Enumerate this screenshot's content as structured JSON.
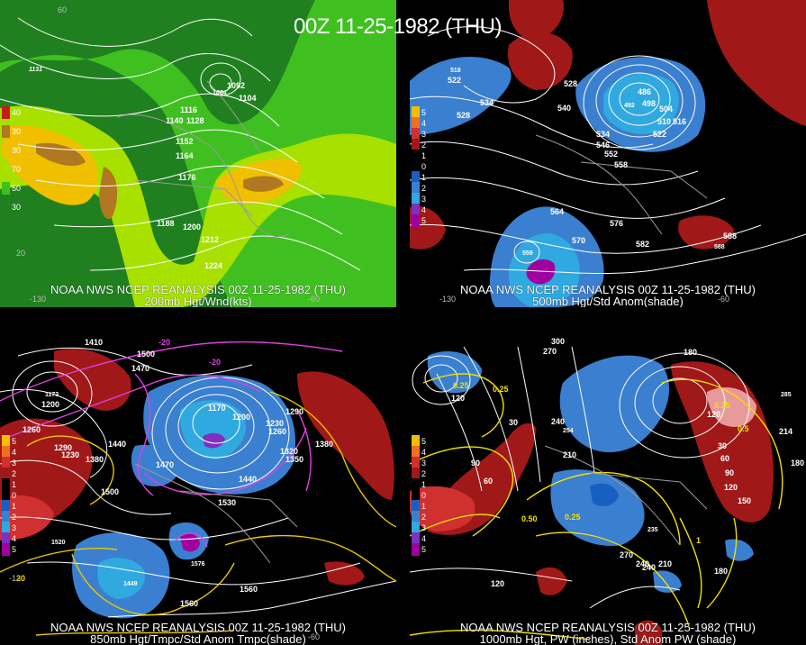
{
  "main_title": "00Z 11-25-1982 (THU)",
  "colors": {
    "background": "#000000",
    "contour": "#ffffff",
    "coast": "#9a9a9a",
    "temp_contour": "#e040e0",
    "pw_contour": "#f0e000",
    "pos_anom": "#b01818",
    "neg_anom": "#3a7fd0"
  },
  "panels": [
    {
      "id": "p200",
      "caption_line1": "NOAA NWS NCEP REANALYSIS 00Z 11-25-1982 (THU)",
      "caption_line2": "200mb Hgt/Wnd(kts)",
      "legend": [
        {
          "label": "40",
          "color": "#c81a1a"
        },
        {
          "label": "30",
          "color": "#b07820"
        },
        {
          "label": "30",
          "color": "#f0c000"
        },
        {
          "label": "70",
          "color": "#a8e000"
        },
        {
          "label": "50",
          "color": "#40c020"
        },
        {
          "label": "30",
          "color": "#208020"
        }
      ],
      "labels": [
        "1092",
        "1104",
        "1116",
        "1128",
        "1140",
        "1152",
        "1164",
        "1176",
        "1188",
        "1200",
        "1212",
        "1224",
        "1131",
        "1084",
        "60",
        "20",
        "-130",
        "-60"
      ]
    },
    {
      "id": "p500",
      "caption_line1": "NOAA NWS NCEP REANALYSIS 00Z 11-25-1982 (THU)",
      "caption_line2": "500mb Hgt/Std Anom(shade)",
      "legend": [
        {
          "label": "5",
          "color": "#f0c000"
        },
        {
          "label": "4",
          "color": "#f07020"
        },
        {
          "label": "3",
          "color": "#d03030"
        },
        {
          "label": "2",
          "color": "#a01818"
        },
        {
          "label": "1",
          "color": "#000000"
        },
        {
          "label": "0",
          "color": "#000000"
        },
        {
          "label": "1",
          "color": "#1860c0"
        },
        {
          "label": "2",
          "color": "#3a7fd0"
        },
        {
          "label": "3",
          "color": "#30a8e0"
        },
        {
          "label": "4",
          "color": "#8030c0"
        },
        {
          "label": "5",
          "color": "#a000a0"
        }
      ],
      "labels": [
        "528",
        "522",
        "534",
        "528",
        "540",
        "486",
        "492",
        "498",
        "504",
        "510",
        "516",
        "522",
        "534",
        "546",
        "552",
        "558",
        "564",
        "570",
        "576",
        "582",
        "588",
        "518",
        "559",
        "588",
        "-130",
        "-60"
      ]
    },
    {
      "id": "p850",
      "caption_line1": "NOAA NWS NCEP REANALYSIS 00Z 11-25-1982 (THU)",
      "caption_line2": "850mb Hgt/Tmpc/Std Anom Tmpc(shade)",
      "legend": [
        {
          "label": "5",
          "color": "#f0c000"
        },
        {
          "label": "4",
          "color": "#f07020"
        },
        {
          "label": "3",
          "color": "#d03030"
        },
        {
          "label": "2",
          "color": "#a01818"
        },
        {
          "label": "1",
          "color": "#000000"
        },
        {
          "label": "0",
          "color": "#000000"
        },
        {
          "label": "1",
          "color": "#1860c0"
        },
        {
          "label": "2",
          "color": "#3a7fd0"
        },
        {
          "label": "3",
          "color": "#30a8e0"
        },
        {
          "label": "4",
          "color": "#8030c0"
        },
        {
          "label": "5",
          "color": "#a000a0"
        }
      ],
      "labels": [
        "1410",
        "1470",
        "1500",
        "1173",
        "1200",
        "1260",
        "1290",
        "1230",
        "1440",
        "1380",
        "1500",
        "1170",
        "1200",
        "1230",
        "1260",
        "1290",
        "1320",
        "1350",
        "1380",
        "1470",
        "1440",
        "1530",
        "1560",
        "1560",
        "1520",
        "1576",
        "1449",
        "-20",
        "-130",
        "-60",
        "-20",
        "20"
      ]
    },
    {
      "id": "p1000",
      "caption_line1": "NOAA NWS NCEP REANALYSIS 00Z 11-25-1982 (THU)",
      "caption_line2": "1000mb Hgt, PW (inches), Std Anom PW (shade)",
      "legend": [
        {
          "label": "5",
          "color": "#f0c000"
        },
        {
          "label": "4",
          "color": "#f07020"
        },
        {
          "label": "3",
          "color": "#d03030"
        },
        {
          "label": "2",
          "color": "#a01818"
        },
        {
          "label": "1",
          "color": "#000000"
        },
        {
          "label": "0",
          "color": "#000000"
        },
        {
          "label": "1",
          "color": "#1860c0"
        },
        {
          "label": "2",
          "color": "#3a7fd0"
        },
        {
          "label": "3",
          "color": "#30a8e0"
        },
        {
          "label": "4",
          "color": "#8030c0"
        },
        {
          "label": "5",
          "color": "#a000a0"
        }
      ],
      "labels": [
        "300",
        "270",
        "210",
        "150",
        "180",
        "120",
        "0.25",
        "0.25",
        "30",
        "60",
        "90",
        "240",
        "254",
        "210",
        "0.50",
        "0.25",
        "235",
        "240",
        "270",
        "240",
        "210",
        "120",
        "150",
        "180",
        "120",
        "90",
        "60",
        "30",
        "180",
        "120",
        "0.5",
        "214",
        "285",
        "0.25",
        "1"
      ]
    }
  ]
}
